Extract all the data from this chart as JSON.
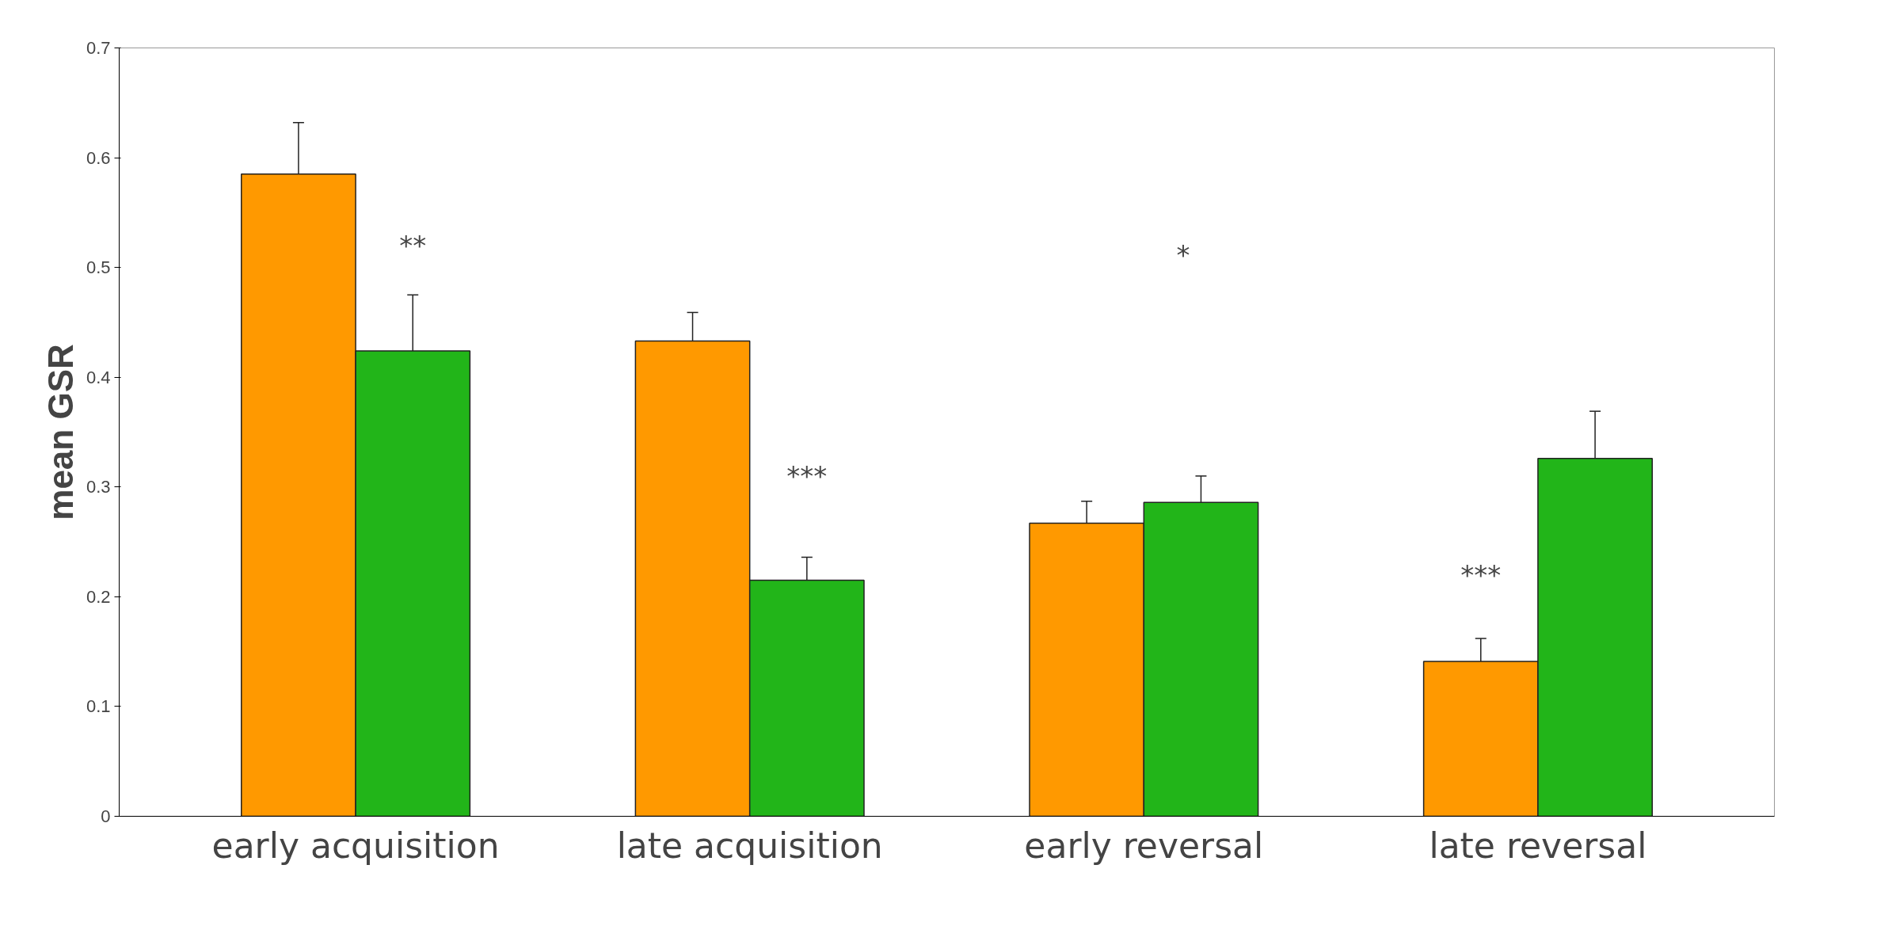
{
  "chart_data": {
    "type": "bar",
    "ylabel": "mean GSR",
    "categories": [
      "early acquisition",
      "late acquisition",
      "early reversal",
      "late reversal"
    ],
    "series": [
      {
        "color": "#ff9900",
        "values": [
          0.585,
          0.433,
          0.267,
          0.141
        ],
        "errors": [
          [
            0.585,
            0.632
          ],
          [
            0.433,
            0.459
          ],
          [
            0.267,
            0.287
          ],
          [
            0.141,
            0.162
          ]
        ]
      },
      {
        "color": "#22b519",
        "values": [
          0.424,
          0.215,
          0.286,
          0.326
        ],
        "errors": [
          [
            0.424,
            0.475
          ],
          [
            0.215,
            0.236
          ],
          [
            0.286,
            0.31
          ],
          [
            0.326,
            0.369
          ]
        ]
      }
    ],
    "ylim": [
      0,
      0.7
    ],
    "yticks": [
      0,
      0.1,
      0.2,
      0.3,
      0.4,
      0.5,
      0.6,
      0.7
    ],
    "grid": false,
    "annotations": [
      {
        "text": "**",
        "x": "early acquisition",
        "y": 0.52
      },
      {
        "text": "***",
        "x": "late acquisition",
        "y": 0.31
      },
      "*",
      {
        "text": "***",
        "x": "late reversal",
        "y": 0.22
      }
    ]
  }
}
